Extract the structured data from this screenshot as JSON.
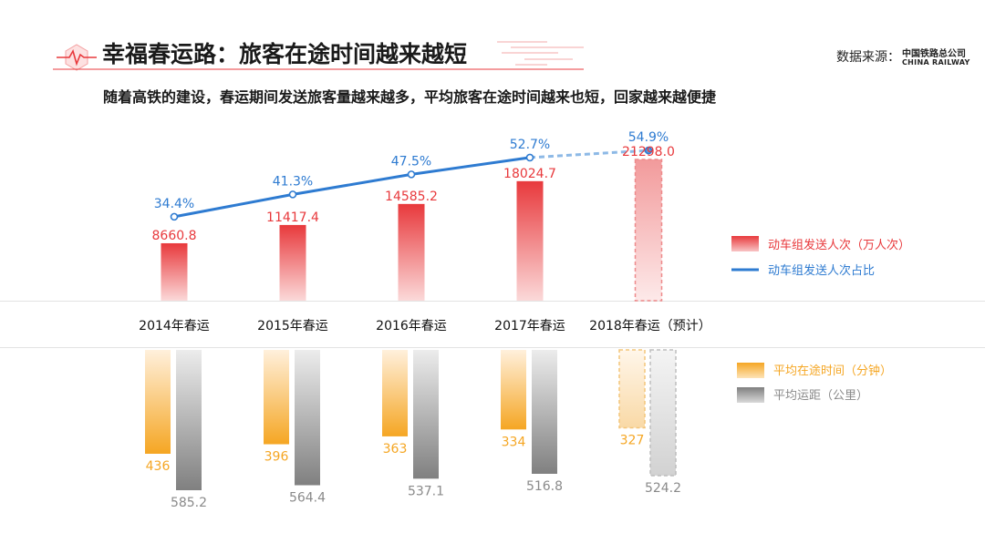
{
  "header": {
    "title": "幸福春运路：旅客在途时间越来越短",
    "subtitle": "随着高铁的建设，春运期间发送旅客量越来越多，平均旅客在途时间越来也短，回家越来越便捷",
    "source_label": "数据来源：",
    "source_org_cn": "中国铁路总公司",
    "source_org_en": "CHINA RAILWAY"
  },
  "colors": {
    "red": "#e8393c",
    "blue": "#2e7bd1",
    "orange": "#f5a623",
    "gray": "#8a8a8a"
  },
  "chart_data": [
    {
      "type": "bar",
      "categories": [
        "2014年春运",
        "2015年春运",
        "2016年春运",
        "2017年春运",
        "2018年春运（预计）"
      ],
      "projected_index": 4,
      "series": [
        {
          "name": "动车组发送人次（万人次）",
          "values": [
            8660.8,
            11417.4,
            14585.2,
            18024.7,
            21298.0
          ],
          "labels": [
            "8660.8",
            "11417.4",
            "14585.2",
            "18024.7",
            "21298.0"
          ]
        },
        {
          "name": "动车组发送人次占比",
          "type": "line",
          "values": [
            34.4,
            41.3,
            47.5,
            52.7,
            54.9
          ],
          "labels": [
            "34.4%",
            "41.3%",
            "47.5%",
            "52.7%",
            "54.9%"
          ]
        }
      ]
    },
    {
      "type": "bar",
      "categories": [
        "2014年春运",
        "2015年春运",
        "2016年春运",
        "2017年春运",
        "2018年春运（预计）"
      ],
      "projected_index": 4,
      "series": [
        {
          "name": "平均在途时间（分钟）",
          "values": [
            436,
            396,
            363,
            334,
            327
          ],
          "labels": [
            "436",
            "396",
            "363",
            "334",
            "327"
          ]
        },
        {
          "name": "平均运距（公里）",
          "values": [
            585.2,
            564.4,
            537.1,
            516.8,
            524.2
          ],
          "labels": [
            "585.2",
            "564.4",
            "537.1",
            "516.8",
            "524.2"
          ]
        }
      ]
    }
  ]
}
